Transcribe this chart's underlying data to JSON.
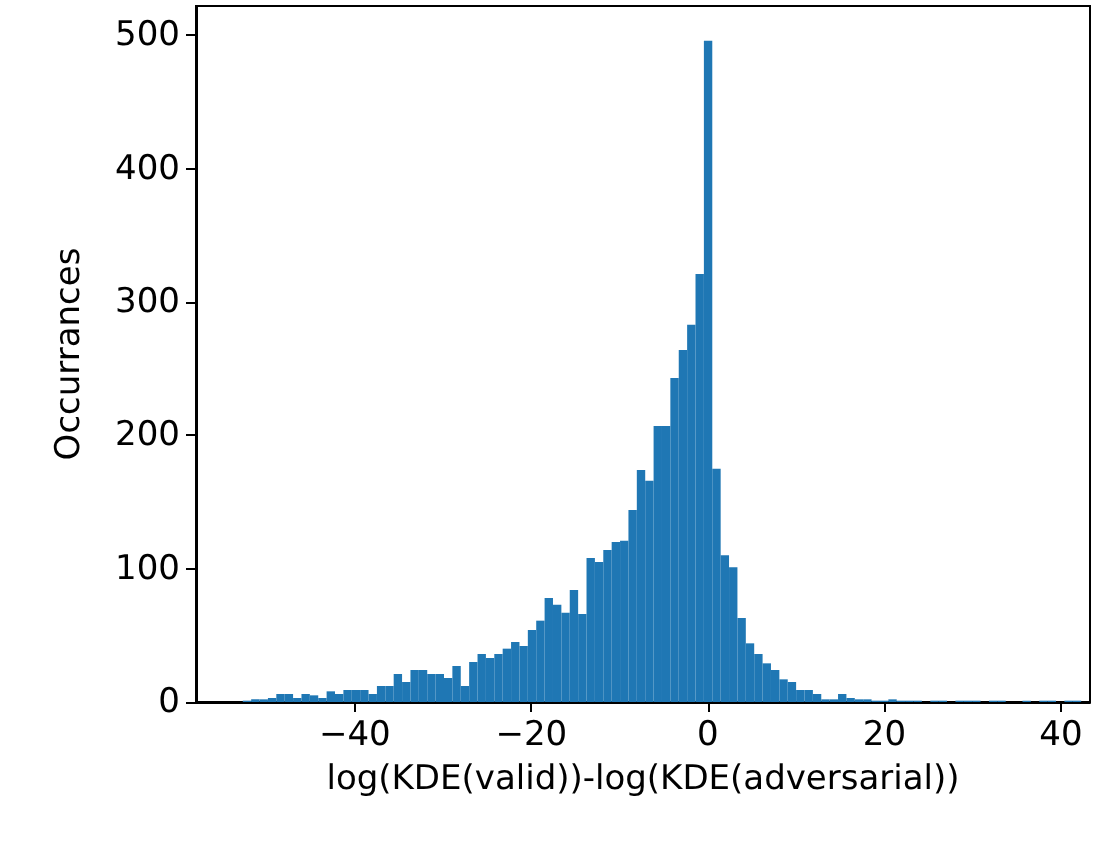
{
  "chart_data": {
    "type": "histogram",
    "xlabel": "log(KDE(valid))-log(KDE(adversarial))",
    "ylabel": "Occurrances",
    "color": "#1f77b4",
    "bins": [
      -52.7,
      -51.75,
      -50.8,
      -49.85,
      -48.9,
      -47.95,
      -47,
      -46.05,
      -45.1,
      -44.15,
      -43.2,
      -42.25,
      -41.3,
      -40.35,
      -39.4,
      -38.45,
      -37.5,
      -36.55,
      -35.6,
      -34.65,
      -33.7,
      -32.75,
      -31.8,
      -30.85,
      -29.9,
      -28.95,
      -28,
      -27.05,
      -26.1,
      -25.15,
      -24.2,
      -23.25,
      -22.3,
      -21.35,
      -20.4,
      -19.45,
      -18.5,
      -17.55,
      -16.6,
      -15.65,
      -14.7,
      -13.75,
      -12.8,
      -11.85,
      -10.9,
      -9.95,
      -9,
      -8.05,
      -7.1,
      -6.15,
      -5.2,
      -4.25,
      -3.3,
      -2.35,
      -1.4,
      -0.45,
      0.5,
      1.45,
      2.4,
      3.35,
      4.3,
      5.25,
      6.2,
      7.15,
      8.1,
      9.05,
      10,
      10.95,
      11.9,
      12.85,
      13.8,
      14.75,
      15.7,
      16.65,
      17.6,
      18.55,
      19.5,
      20.45,
      21.4,
      22.35,
      23.3,
      24.25,
      25.2,
      26.15,
      27.1,
      28.05,
      29,
      29.95,
      30.9,
      31.85,
      32.8,
      33.75,
      34.7,
      35.65,
      36.6,
      37.55,
      38.5,
      39.45,
      40.4,
      41.35,
      42.3
    ],
    "values": [
      1,
      2,
      2,
      3,
      6,
      6,
      3,
      6,
      5,
      3,
      8,
      6,
      9,
      9,
      9,
      6,
      12,
      12,
      21,
      15,
      24,
      24,
      21,
      21,
      18,
      27,
      12,
      30,
      36,
      33,
      36,
      40,
      45,
      42,
      54,
      61,
      78,
      73,
      67,
      84,
      66,
      108,
      105,
      114,
      120,
      121,
      144,
      174,
      166,
      207,
      207,
      243,
      264,
      283,
      321,
      496,
      175,
      110,
      101,
      63,
      44,
      36,
      29,
      24,
      17,
      15,
      9,
      9,
      6,
      2,
      2,
      6,
      3,
      2,
      2,
      1,
      1,
      2,
      1,
      1,
      1,
      0,
      1,
      1,
      0,
      1,
      1,
      1,
      0,
      1,
      1,
      0,
      0,
      1,
      0,
      1,
      1,
      0,
      1,
      1
    ],
    "xlim": [
      -58,
      43.3
    ],
    "xticks": [
      -40,
      -20,
      0,
      20,
      40
    ],
    "ylim": [
      0,
      522
    ],
    "yticks": [
      0,
      100,
      200,
      300,
      400,
      500
    ],
    "grid": false
  }
}
